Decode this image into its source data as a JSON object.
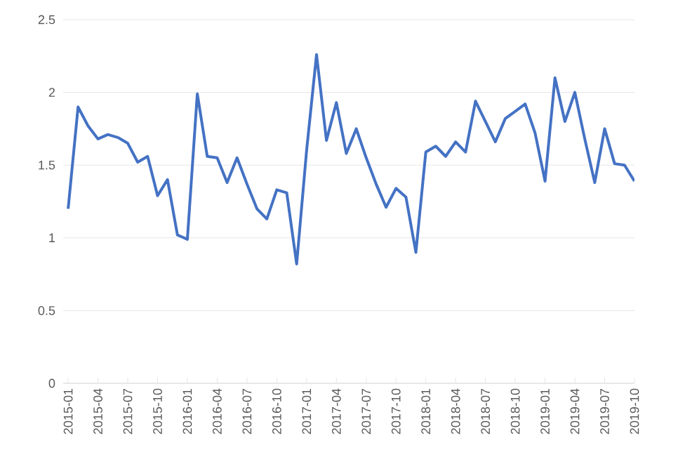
{
  "chart_data": {
    "type": "line",
    "categories": [
      "2015-01",
      null,
      null,
      "2015-04",
      null,
      null,
      "2015-07",
      null,
      null,
      "2015-10",
      null,
      null,
      "2016-01",
      null,
      null,
      "2016-04",
      null,
      null,
      "2016-07",
      null,
      null,
      "2016-10",
      null,
      null,
      "2017-01",
      null,
      null,
      "2017-04",
      null,
      null,
      "2017-07",
      null,
      null,
      "2017-10",
      null,
      null,
      "2018-01",
      null,
      null,
      "2018-04",
      null,
      null,
      "2018-07",
      null,
      null,
      "2018-10",
      null,
      null,
      "2019-01",
      null,
      null,
      "2019-04",
      null,
      null,
      "2019-07",
      null,
      null,
      "2019-10"
    ],
    "series": [
      {
        "color": "#4472c4",
        "values": [
          1.2,
          1.9,
          1.77,
          1.68,
          1.71,
          1.69,
          1.65,
          1.52,
          1.56,
          1.29,
          1.4,
          1.02,
          0.99,
          1.99,
          1.56,
          1.55,
          1.38,
          1.55,
          1.37,
          1.2,
          1.13,
          1.33,
          1.31,
          0.82,
          1.6,
          2.26,
          1.67,
          1.93,
          1.58,
          1.75,
          1.55,
          1.37,
          1.21,
          1.34,
          1.28,
          0.9,
          1.59,
          1.63,
          1.56,
          1.66,
          1.59,
          1.94,
          1.8,
          1.66,
          1.82,
          1.87,
          1.92,
          1.72,
          1.39,
          2.1,
          1.8,
          2.0,
          1.68,
          1.38,
          1.75,
          1.51,
          1.5,
          1.39
        ]
      }
    ],
    "ylim": [
      0,
      2.5
    ],
    "yticks": [
      0,
      0.5,
      1,
      1.5,
      2,
      2.5
    ],
    "grid": "y"
  }
}
